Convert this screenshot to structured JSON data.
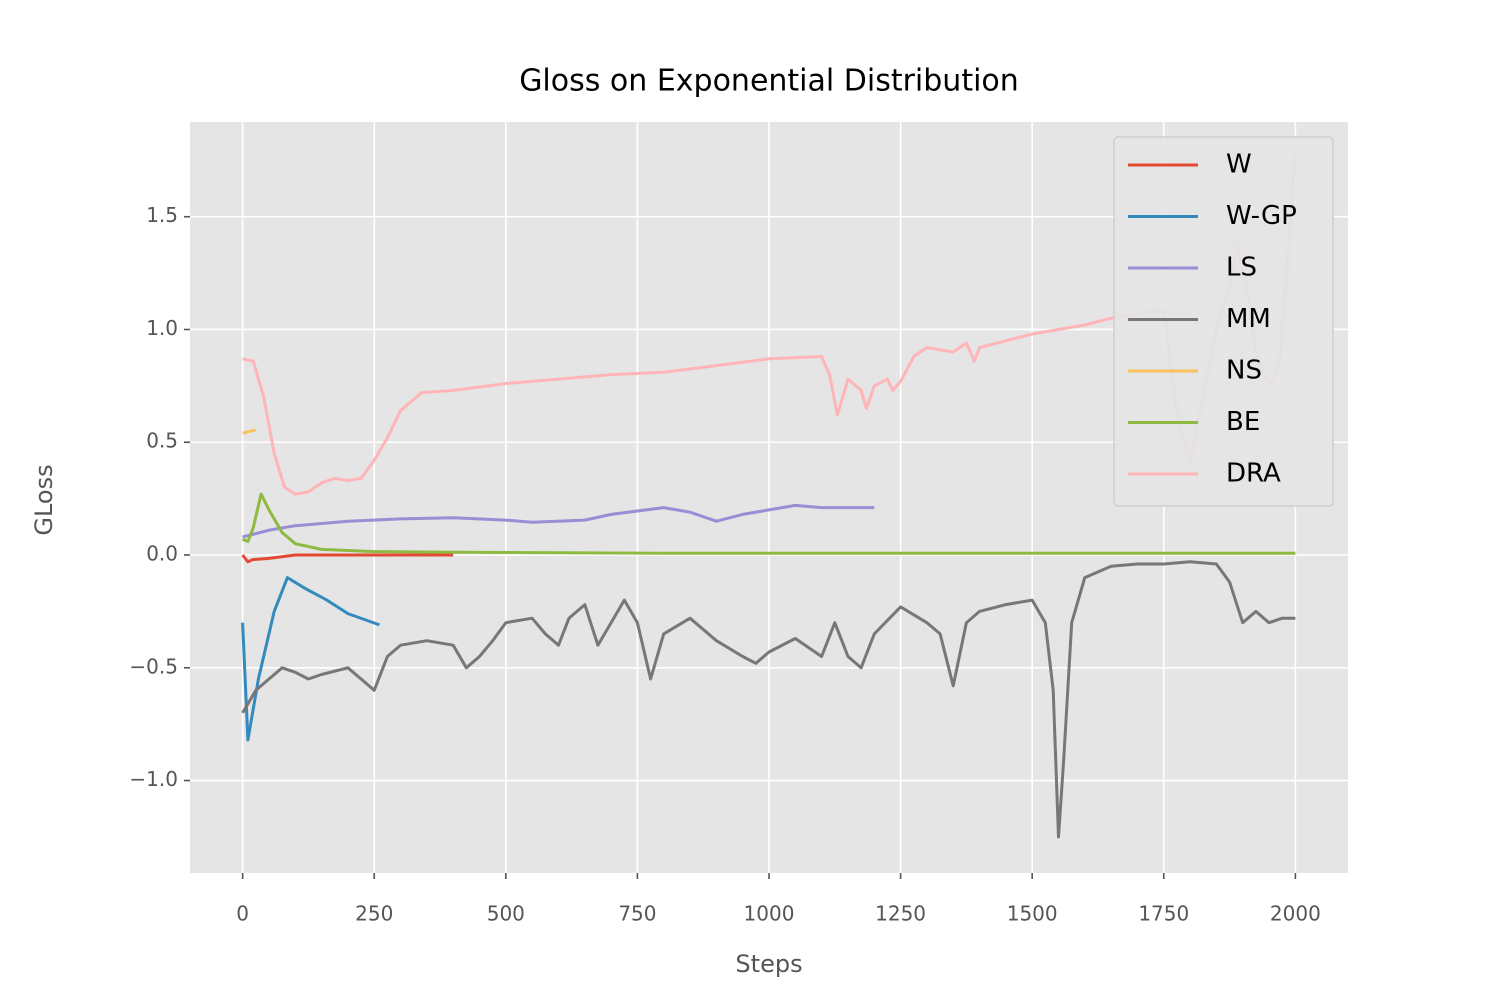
{
  "chart_data": {
    "type": "line",
    "title": "Gloss on Exponential Distribution",
    "x_label": "Steps",
    "y_label": "GLoss",
    "xlim": [
      -100,
      2100
    ],
    "ylim": [
      -1.41,
      1.92
    ],
    "xticks": [
      0,
      250,
      500,
      750,
      1000,
      1250,
      1500,
      1750,
      2000
    ],
    "yticks": [
      {
        "value": -1.0,
        "label": "−1.0"
      },
      {
        "value": -0.5,
        "label": "−0.5"
      },
      {
        "value": 0.0,
        "label": "0.0"
      },
      {
        "value": 0.5,
        "label": "0.5"
      },
      {
        "value": 1.0,
        "label": "1.0"
      },
      {
        "value": 1.5,
        "label": "1.5"
      }
    ],
    "grid": true,
    "legend": "upper right",
    "series": [
      {
        "name": "W",
        "color": "#E24A33",
        "x": [
          0,
          10,
          20,
          50,
          100,
          200,
          300,
          400
        ],
        "values": [
          0,
          -0.03,
          -0.02,
          -0.015,
          0,
          0,
          0,
          0
        ]
      },
      {
        "name": "W-GP",
        "color": "#348ABD",
        "x": [
          0,
          10,
          30,
          60,
          85,
          120,
          160,
          200,
          260
        ],
        "values": [
          -0.3,
          -0.82,
          -0.55,
          -0.25,
          -0.1,
          -0.15,
          -0.2,
          -0.26,
          -0.31
        ]
      },
      {
        "name": "LS",
        "color": "#988ED5",
        "x": [
          0,
          50,
          100,
          200,
          300,
          400,
          500,
          550,
          650,
          700,
          800,
          850,
          900,
          950,
          1000,
          1050,
          1100,
          1200
        ],
        "values": [
          0.08,
          0.11,
          0.13,
          0.15,
          0.16,
          0.165,
          0.155,
          0.145,
          0.155,
          0.18,
          0.21,
          0.19,
          0.15,
          0.18,
          0.2,
          0.22,
          0.21,
          0.21
        ]
      },
      {
        "name": "MM",
        "color": "#777777",
        "x": [
          0,
          25,
          50,
          75,
          100,
          125,
          150,
          200,
          225,
          250,
          275,
          300,
          350,
          400,
          425,
          450,
          475,
          500,
          550,
          575,
          600,
          620,
          650,
          675,
          700,
          725,
          750,
          775,
          800,
          850,
          900,
          950,
          975,
          1000,
          1050,
          1100,
          1125,
          1150,
          1175,
          1200,
          1250,
          1300,
          1325,
          1350,
          1375,
          1400,
          1450,
          1500,
          1525,
          1540,
          1550,
          1560,
          1575,
          1600,
          1650,
          1700,
          1750,
          1800,
          1850,
          1875,
          1900,
          1925,
          1950,
          1975,
          2000
        ],
        "values": [
          -0.7,
          -0.6,
          -0.55,
          -0.5,
          -0.52,
          -0.55,
          -0.53,
          -0.5,
          -0.55,
          -0.6,
          -0.45,
          -0.4,
          -0.38,
          -0.4,
          -0.5,
          -0.45,
          -0.38,
          -0.3,
          -0.28,
          -0.35,
          -0.4,
          -0.28,
          -0.22,
          -0.4,
          -0.3,
          -0.2,
          -0.3,
          -0.55,
          -0.35,
          -0.28,
          -0.38,
          -0.45,
          -0.48,
          -0.43,
          -0.37,
          -0.45,
          -0.3,
          -0.45,
          -0.5,
          -0.35,
          -0.23,
          -0.3,
          -0.35,
          -0.58,
          -0.3,
          -0.25,
          -0.22,
          -0.2,
          -0.3,
          -0.6,
          -1.25,
          -0.9,
          -0.3,
          -0.1,
          -0.05,
          -0.04,
          -0.04,
          -0.03,
          -0.04,
          -0.12,
          -0.3,
          -0.25,
          -0.3,
          -0.28,
          -0.28
        ]
      },
      {
        "name": "NS",
        "color": "#FBC15E",
        "x": [
          0,
          25
        ],
        "values": [
          0.54,
          0.555
        ]
      },
      {
        "name": "BE",
        "color": "#8EBA42",
        "x": [
          0,
          10,
          20,
          35,
          50,
          75,
          100,
          150,
          250,
          400,
          800,
          1200,
          2000
        ],
        "values": [
          0.07,
          0.06,
          0.12,
          0.27,
          0.2,
          0.1,
          0.05,
          0.025,
          0.015,
          0.012,
          0.008,
          0.008,
          0.008
        ]
      },
      {
        "name": "DRA",
        "color": "#FFB5B8",
        "x": [
          0,
          20,
          40,
          60,
          80,
          100,
          125,
          150,
          175,
          200,
          225,
          250,
          275,
          300,
          340,
          400,
          500,
          600,
          700,
          800,
          900,
          1000,
          1100,
          1115,
          1130,
          1150,
          1175,
          1185,
          1200,
          1225,
          1235,
          1250,
          1275,
          1300,
          1350,
          1375,
          1390,
          1400,
          1450,
          1500,
          1550,
          1600,
          1650,
          1700,
          1725,
          1750,
          1760,
          1775,
          1790,
          1800,
          1825,
          1850,
          1875,
          1890,
          1910,
          1925,
          1950,
          1970,
          1985,
          2000
        ],
        "values": [
          0.87,
          0.86,
          0.7,
          0.45,
          0.3,
          0.27,
          0.28,
          0.32,
          0.34,
          0.33,
          0.34,
          0.42,
          0.52,
          0.64,
          0.72,
          0.73,
          0.76,
          0.78,
          0.8,
          0.81,
          0.84,
          0.87,
          0.88,
          0.8,
          0.62,
          0.78,
          0.73,
          0.65,
          0.75,
          0.78,
          0.73,
          0.77,
          0.88,
          0.92,
          0.9,
          0.94,
          0.86,
          0.92,
          0.95,
          0.98,
          1.0,
          1.02,
          1.05,
          1.07,
          1.08,
          1.08,
          0.9,
          0.63,
          0.5,
          0.42,
          0.7,
          1.0,
          1.2,
          1.38,
          1.15,
          0.9,
          0.75,
          0.85,
          1.3,
          1.78
        ]
      }
    ]
  }
}
